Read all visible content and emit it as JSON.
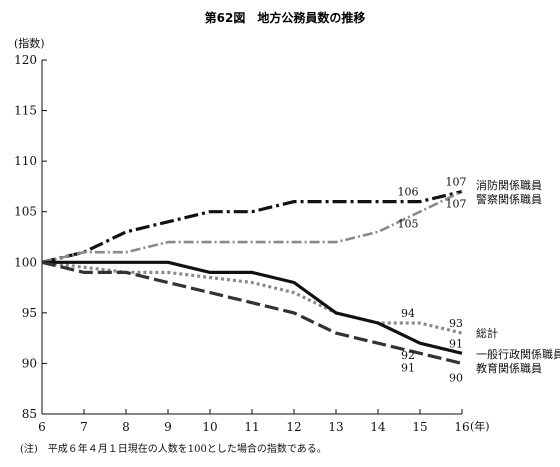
{
  "chart_data": {
    "type": "line",
    "title": "第62図　地方公務員数の推移",
    "ylabel": "(指数)",
    "xlabel_unit": "(年)",
    "note": "(注)　平成６年４月１日現在の人数を100とした場合の指数である。",
    "x": [
      6,
      7,
      8,
      9,
      10,
      11,
      12,
      13,
      14,
      15,
      16
    ],
    "xlim": [
      6,
      16
    ],
    "ylim": [
      85,
      120
    ],
    "yticks": [
      85,
      90,
      95,
      100,
      105,
      110,
      115,
      120
    ],
    "grid": false,
    "series": [
      {
        "name": "消防関係職員",
        "style": "dashdot",
        "color": "#111111",
        "values": [
          100,
          101,
          103,
          104,
          105,
          105,
          106,
          106,
          106,
          106,
          107
        ]
      },
      {
        "name": "警察関係職員",
        "style": "dashdot-light",
        "color": "#8a8a8a",
        "values": [
          100,
          101,
          101,
          102,
          102,
          102,
          102,
          102,
          103,
          105,
          107
        ]
      },
      {
        "name": "総計",
        "style": "dotted",
        "color": "#8a8a8a",
        "values": [
          100,
          99.5,
          99,
          99,
          98.5,
          98,
          97,
          95,
          94,
          94,
          93
        ]
      },
      {
        "name": "一般行政関係職員",
        "style": "solid",
        "color": "#111111",
        "values": [
          100,
          100,
          100,
          100,
          99,
          99,
          98,
          95,
          94,
          92,
          91
        ]
      },
      {
        "name": "教育関係職員",
        "style": "dashed",
        "color": "#333333",
        "values": [
          100,
          99,
          99,
          98,
          97,
          96,
          95,
          93,
          92,
          91,
          90
        ]
      }
    ],
    "annotations": [
      {
        "x": 15,
        "y": 106,
        "text": "106"
      },
      {
        "x": 16,
        "y": 107,
        "text": "107"
      },
      {
        "x": 16,
        "y": 107,
        "text": "107"
      },
      {
        "x": 15,
        "y": 105,
        "text": "105"
      },
      {
        "x": 15,
        "y": 94,
        "text": "94"
      },
      {
        "x": 16,
        "y": 93,
        "text": "93"
      },
      {
        "x": 15,
        "y": 92,
        "text": "92"
      },
      {
        "x": 16,
        "y": 91,
        "text": "91"
      },
      {
        "x": 15,
        "y": 91,
        "text": "91"
      },
      {
        "x": 16,
        "y": 90,
        "text": "90"
      }
    ]
  }
}
